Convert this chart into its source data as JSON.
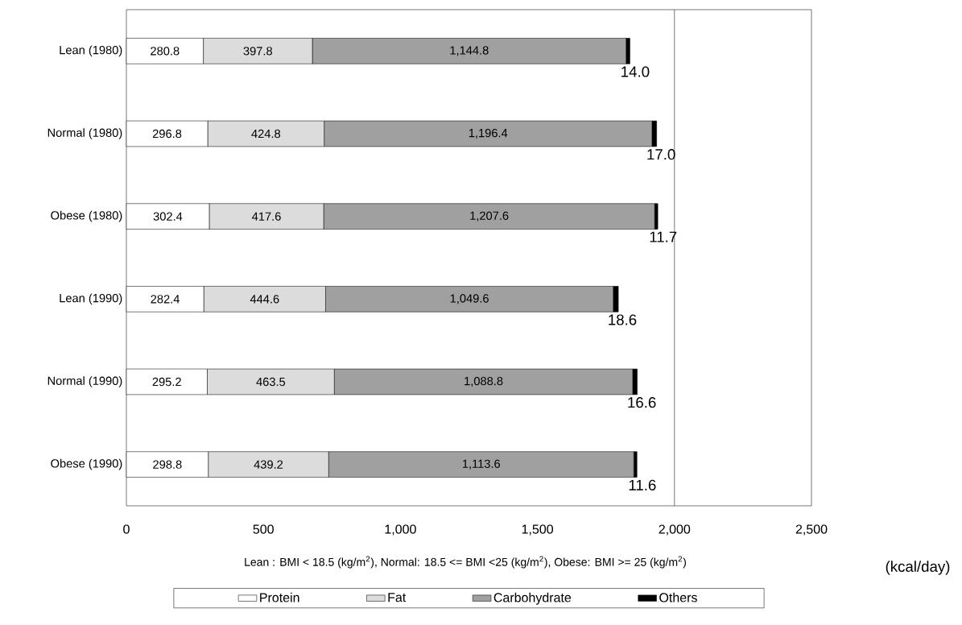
{
  "chart_data": {
    "type": "bar",
    "orientation": "horizontal",
    "stacked": true,
    "categories": [
      "Lean (1980)",
      "Normal (1980)",
      "Obese (1980)",
      "Lean (1990)",
      "Normal (1990)",
      "Obese (1990)"
    ],
    "series": [
      {
        "name": "Protein",
        "color": "#ffffff",
        "values": [
          280.8,
          296.8,
          302.4,
          282.4,
          295.2,
          298.8
        ],
        "value_labels": [
          "280.8",
          "296.8",
          "302.4",
          "282.4",
          "295.2",
          "298.8"
        ]
      },
      {
        "name": "Fat",
        "color": "#dcdcdc",
        "values": [
          397.8,
          424.8,
          417.6,
          444.6,
          463.5,
          439.2
        ],
        "value_labels": [
          "397.8",
          "424.8",
          "417.6",
          "444.6",
          "463.5",
          "439.2"
        ]
      },
      {
        "name": "Carbohydrate",
        "color": "#a0a0a0",
        "values": [
          1144.8,
          1196.4,
          1207.6,
          1049.6,
          1088.8,
          1113.6
        ],
        "value_labels": [
          "1,144.8",
          "1,196.4",
          "1,207.6",
          "1,049.6",
          "1,088.8",
          "1,113.6"
        ]
      },
      {
        "name": "Others",
        "color": "#000000",
        "values": [
          14.0,
          17.0,
          11.7,
          18.6,
          16.6,
          11.6
        ],
        "value_labels": [
          "14.0",
          "17.0",
          "11.7",
          "18.6",
          "16.6",
          "11.6"
        ]
      }
    ],
    "xlim": [
      0,
      2500
    ],
    "xticks": [
      0,
      500,
      {
        "value": 1000,
        "label": "1,000"
      },
      {
        "value": 1500,
        "label": "1,500"
      },
      {
        "value": 2000,
        "label": "2,000"
      },
      {
        "value": 2500,
        "label": "2,500"
      }
    ],
    "xlabel": "(kcal/day)",
    "ref_lines": [
      {
        "axis": "x",
        "value": 2000
      }
    ],
    "legend": "bottom",
    "annotations": [
      "Lean : BMI < 18.5 (kg/m$^{2}$), Normal: 18.5 <= BMI <25 (kg/m$^{2}$), Obese: BMI >= 25 (kg/m$^{2}$)"
    ]
  }
}
